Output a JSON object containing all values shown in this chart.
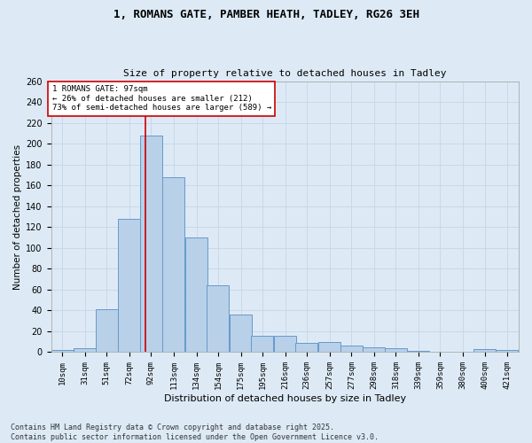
{
  "title1": "1, ROMANS GATE, PAMBER HEATH, TADLEY, RG26 3EH",
  "title2": "Size of property relative to detached houses in Tadley",
  "xlabel": "Distribution of detached houses by size in Tadley",
  "ylabel": "Number of detached properties",
  "categories": [
    "10sqm",
    "31sqm",
    "51sqm",
    "72sqm",
    "92sqm",
    "113sqm",
    "134sqm",
    "154sqm",
    "175sqm",
    "195sqm",
    "216sqm",
    "236sqm",
    "257sqm",
    "277sqm",
    "298sqm",
    "318sqm",
    "339sqm",
    "359sqm",
    "380sqm",
    "400sqm",
    "421sqm"
  ],
  "values": [
    2,
    4,
    41,
    128,
    208,
    168,
    110,
    64,
    36,
    16,
    16,
    9,
    10,
    6,
    5,
    4,
    1,
    0,
    0,
    3,
    2
  ],
  "bar_color": "#b8d0e8",
  "bar_edge_color": "#6699cc",
  "grid_color": "#c8d8ea",
  "bg_color": "#ddeaf6",
  "property_line_x": 97,
  "property_line_label": "1 ROMANS GATE: 97sqm",
  "annotation_smaller": "← 26% of detached houses are smaller (212)",
  "annotation_larger": "73% of semi-detached houses are larger (589) →",
  "annotation_box_color": "#ffffff",
  "annotation_box_edge": "#cc0000",
  "red_line_color": "#cc0000",
  "footer": "Contains HM Land Registry data © Crown copyright and database right 2025.\nContains public sector information licensed under the Open Government Licence v3.0.",
  "ylim": [
    0,
    260
  ],
  "yticks": [
    0,
    20,
    40,
    60,
    80,
    100,
    120,
    140,
    160,
    180,
    200,
    220,
    240,
    260
  ],
  "bin_width": 21,
  "bin_starts": [
    10,
    31,
    51,
    72,
    92,
    113,
    134,
    154,
    175,
    195,
    216,
    236,
    257,
    277,
    298,
    318,
    339,
    359,
    380,
    400,
    421
  ]
}
